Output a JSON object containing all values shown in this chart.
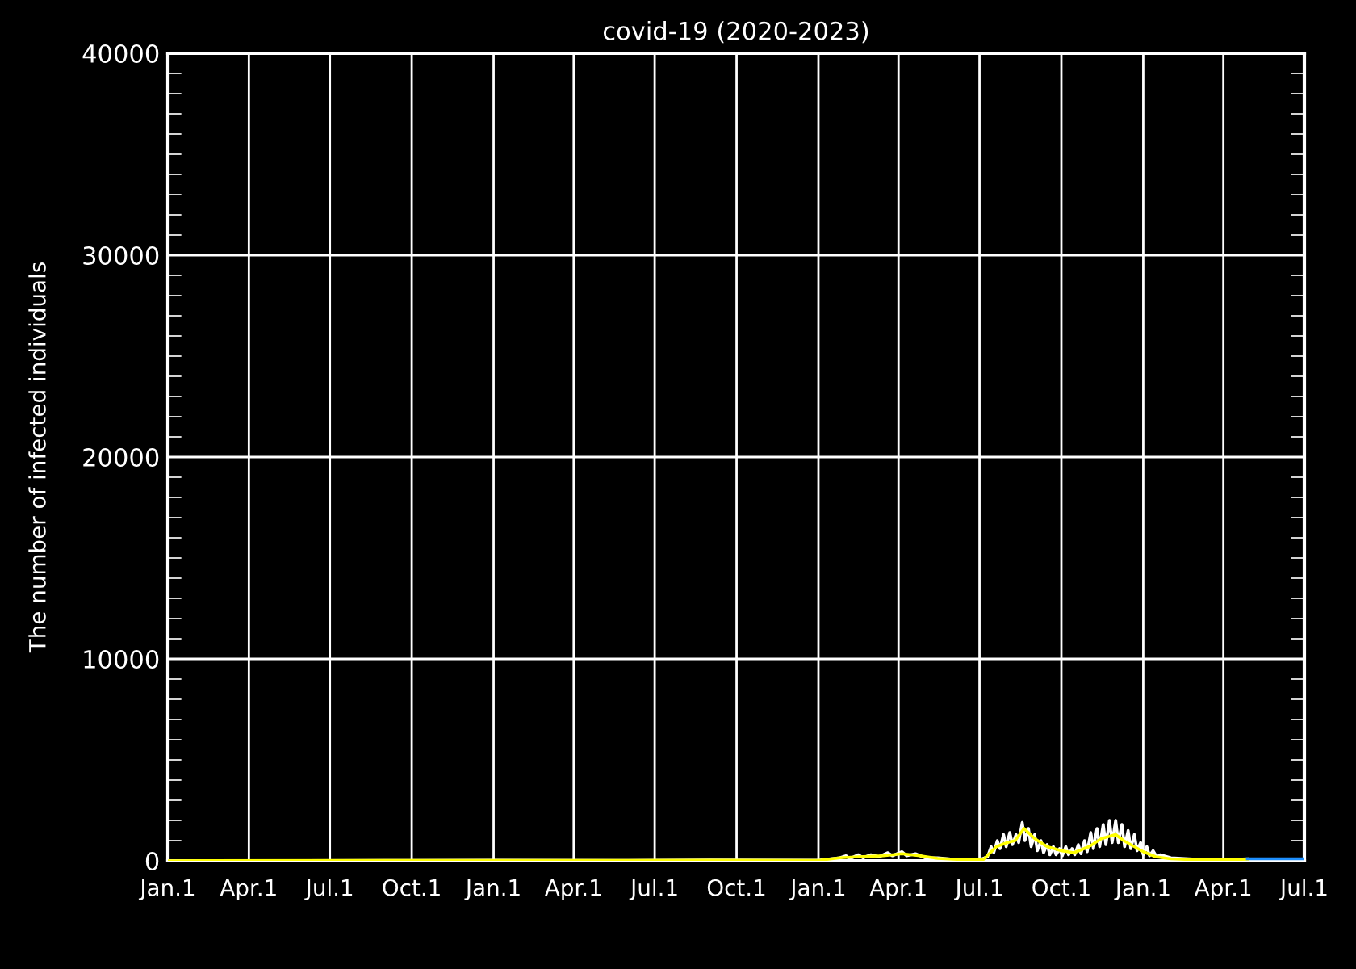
{
  "chart_data": {
    "type": "line",
    "title": "covid-19 (2020-2023)",
    "ylabel": "The number of infected individuals",
    "xlim": [
      "2020-01-01",
      "2023-07-01"
    ],
    "xticks": [
      {
        "value": "2020-01-01",
        "label": "Jan.1"
      },
      {
        "value": "2020-04-01",
        "label": "Apr.1"
      },
      {
        "value": "2020-07-01",
        "label": "Jul.1"
      },
      {
        "value": "2020-10-01",
        "label": "Oct.1"
      },
      {
        "value": "2021-01-01",
        "label": "Jan.1"
      },
      {
        "value": "2021-04-01",
        "label": "Apr.1"
      },
      {
        "value": "2021-07-01",
        "label": "Jul.1"
      },
      {
        "value": "2021-10-01",
        "label": "Oct.1"
      },
      {
        "value": "2022-01-01",
        "label": "Jan.1"
      },
      {
        "value": "2022-04-01",
        "label": "Apr.1"
      },
      {
        "value": "2022-07-01",
        "label": "Jul.1"
      },
      {
        "value": "2022-10-01",
        "label": "Oct.1"
      },
      {
        "value": "2023-01-01",
        "label": "Jan.1"
      },
      {
        "value": "2023-04-01",
        "label": "Apr.1"
      },
      {
        "value": "2023-07-01",
        "label": "Jul.1"
      }
    ],
    "ylim": [
      0,
      40000
    ],
    "yticks": [
      0,
      10000,
      20000,
      30000,
      40000
    ],
    "grid": true,
    "legend": false,
    "marker": "none",
    "line_style": "solid",
    "series": [
      {
        "color": "#ffffff",
        "x": [
          "2020-01-01",
          "2020-06-01",
          "2020-09-01",
          "2021-01-01",
          "2021-06-01",
          "2021-09-01",
          "2022-01-01",
          "2022-01-25",
          "2022-02-01",
          "2022-02-05",
          "2022-02-15",
          "2022-02-20",
          "2022-03-01",
          "2022-03-10",
          "2022-03-20",
          "2022-03-25",
          "2022-04-05",
          "2022-04-10",
          "2022-04-20",
          "2022-05-01",
          "2022-05-15",
          "2022-06-01",
          "2022-07-01",
          "2022-07-10",
          "2022-07-14",
          "2022-07-17",
          "2022-07-21",
          "2022-07-24",
          "2022-07-28",
          "2022-07-31",
          "2022-08-04",
          "2022-08-07",
          "2022-08-11",
          "2022-08-14",
          "2022-08-18",
          "2022-08-21",
          "2022-08-25",
          "2022-08-28",
          "2022-09-01",
          "2022-09-04",
          "2022-09-08",
          "2022-09-11",
          "2022-09-15",
          "2022-09-18",
          "2022-09-22",
          "2022-09-25",
          "2022-09-29",
          "2022-10-02",
          "2022-10-06",
          "2022-10-09",
          "2022-10-13",
          "2022-10-16",
          "2022-10-20",
          "2022-10-23",
          "2022-10-27",
          "2022-10-30",
          "2022-11-03",
          "2022-11-06",
          "2022-11-10",
          "2022-11-13",
          "2022-11-17",
          "2022-11-20",
          "2022-11-24",
          "2022-11-27",
          "2022-12-01",
          "2022-12-04",
          "2022-12-08",
          "2022-12-11",
          "2022-12-15",
          "2022-12-18",
          "2022-12-22",
          "2022-12-25",
          "2022-12-29",
          "2023-01-01",
          "2023-01-05",
          "2023-01-08",
          "2023-01-12",
          "2023-01-16",
          "2023-01-20",
          "2023-02-01",
          "2023-03-01",
          "2023-04-01",
          "2023-04-28"
        ],
        "values": [
          0,
          10,
          20,
          30,
          20,
          40,
          30,
          150,
          250,
          100,
          300,
          150,
          300,
          200,
          400,
          250,
          450,
          250,
          350,
          150,
          150,
          80,
          50,
          200,
          700,
          400,
          1000,
          600,
          1300,
          700,
          1400,
          800,
          1300,
          900,
          1900,
          1000,
          1600,
          700,
          1300,
          500,
          1000,
          400,
          800,
          300,
          700,
          300,
          600,
          250,
          700,
          300,
          600,
          300,
          800,
          350,
          1000,
          450,
          1400,
          600,
          1600,
          700,
          1800,
          800,
          2000,
          900,
          2000,
          900,
          1800,
          700,
          1500,
          600,
          1300,
          500,
          900,
          300,
          700,
          250,
          500,
          200,
          300,
          150,
          80,
          60,
          100
        ]
      },
      {
        "color": "#ffff00",
        "x": [
          "2020-01-01",
          "2020-09-01",
          "2021-01-01",
          "2021-06-01",
          "2021-09-01",
          "2022-01-01",
          "2022-01-25",
          "2022-02-15",
          "2022-03-15",
          "2022-04-05",
          "2022-04-25",
          "2022-05-15",
          "2022-06-15",
          "2022-07-05",
          "2022-07-20",
          "2022-08-01",
          "2022-08-10",
          "2022-08-20",
          "2022-09-01",
          "2022-09-15",
          "2022-10-01",
          "2022-10-15",
          "2022-11-01",
          "2022-11-15",
          "2022-12-01",
          "2022-12-10",
          "2022-12-20",
          "2023-01-01",
          "2023-01-15",
          "2023-02-01",
          "2023-03-01",
          "2023-04-01",
          "2023-04-28"
        ],
        "values": [
          0,
          20,
          20,
          20,
          30,
          20,
          150,
          200,
          250,
          350,
          250,
          120,
          50,
          50,
          700,
          900,
          1000,
          1600,
          1100,
          700,
          500,
          400,
          700,
          1100,
          1300,
          1000,
          750,
          450,
          200,
          100,
          50,
          50,
          80
        ]
      },
      {
        "color": "#1e90ff",
        "x": [
          "2023-04-28",
          "2023-07-01"
        ],
        "values": [
          100,
          100
        ]
      }
    ]
  }
}
